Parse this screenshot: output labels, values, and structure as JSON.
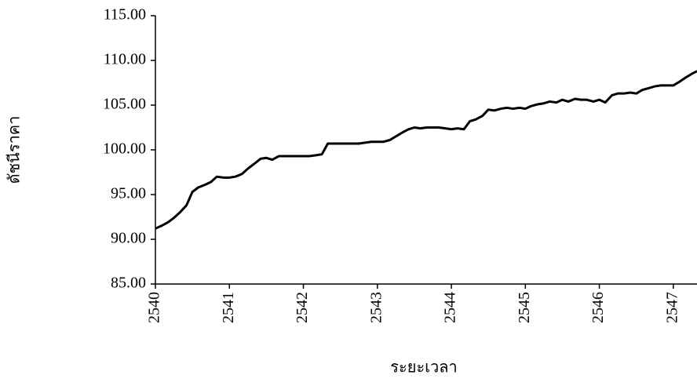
{
  "chart_data": {
    "type": "line",
    "x_label": "ระยะเวลา",
    "y_label": "ดัชนีราคา",
    "x": [
      2540,
      2540.08,
      2540.17,
      2540.25,
      2540.33,
      2540.42,
      2540.5,
      2540.58,
      2540.67,
      2540.75,
      2540.83,
      2540.92,
      2541,
      2541.08,
      2541.17,
      2541.25,
      2541.33,
      2541.42,
      2541.5,
      2541.58,
      2541.67,
      2541.75,
      2541.83,
      2541.92,
      2542,
      2542.08,
      2542.17,
      2542.25,
      2542.33,
      2542.42,
      2542.5,
      2542.58,
      2542.67,
      2542.75,
      2542.83,
      2542.92,
      2543,
      2543.08,
      2543.17,
      2543.25,
      2543.33,
      2543.42,
      2543.5,
      2543.58,
      2543.67,
      2543.75,
      2543.83,
      2543.92,
      2544,
      2544.08,
      2544.17,
      2544.25,
      2544.33,
      2544.42,
      2544.5,
      2544.58,
      2544.67,
      2544.75,
      2544.83,
      2544.92,
      2545,
      2545.08,
      2545.17,
      2545.25,
      2545.33,
      2545.42,
      2545.5,
      2545.58,
      2545.67,
      2545.75,
      2545.83,
      2545.92,
      2546,
      2546.08,
      2546.17,
      2546.25,
      2546.33,
      2546.42,
      2546.5,
      2546.58,
      2546.67,
      2546.75,
      2546.83,
      2546.92,
      2547,
      2547.08,
      2547.17,
      2547.25,
      2547.32
    ],
    "series": [
      {
        "color": "#000000",
        "values": [
          91.2,
          91.5,
          91.9,
          92.4,
          93.0,
          93.8,
          95.3,
          95.8,
          96.1,
          96.4,
          97.0,
          96.9,
          96.9,
          97.0,
          97.3,
          97.9,
          98.4,
          99.0,
          99.1,
          98.9,
          99.3,
          99.3,
          99.3,
          99.3,
          99.3,
          99.3,
          99.4,
          99.5,
          100.7,
          100.7,
          100.7,
          100.7,
          100.7,
          100.7,
          100.8,
          100.9,
          100.9,
          100.9,
          101.1,
          101.5,
          101.9,
          102.3,
          102.5,
          102.4,
          102.5,
          102.5,
          102.5,
          102.4,
          102.3,
          102.4,
          102.3,
          103.2,
          103.4,
          103.8,
          104.5,
          104.4,
          104.6,
          104.7,
          104.6,
          104.7,
          104.6,
          104.9,
          105.1,
          105.2,
          105.4,
          105.3,
          105.6,
          105.4,
          105.7,
          105.6,
          105.6,
          105.4,
          105.6,
          105.3,
          106.1,
          106.3,
          106.3,
          106.4,
          106.3,
          106.7,
          106.9,
          107.1,
          107.2,
          107.2,
          107.2,
          107.6,
          108.1,
          108.5,
          108.8
        ]
      }
    ],
    "xlim": [
      2540,
      2547.32
    ],
    "xticks": [
      2540,
      2541,
      2542,
      2543,
      2544,
      2545,
      2546,
      2547
    ],
    "ylim": [
      85,
      115
    ],
    "yticks": [
      {
        "value": 85,
        "label": "85.00"
      },
      {
        "value": 90,
        "label": "90.00"
      },
      {
        "value": 95,
        "label": "95.00"
      },
      {
        "value": 100,
        "label": "100.00"
      },
      {
        "value": 105,
        "label": "105.00"
      },
      {
        "value": 110,
        "label": "110.00"
      },
      {
        "value": 115,
        "label": "115.00"
      }
    ]
  }
}
